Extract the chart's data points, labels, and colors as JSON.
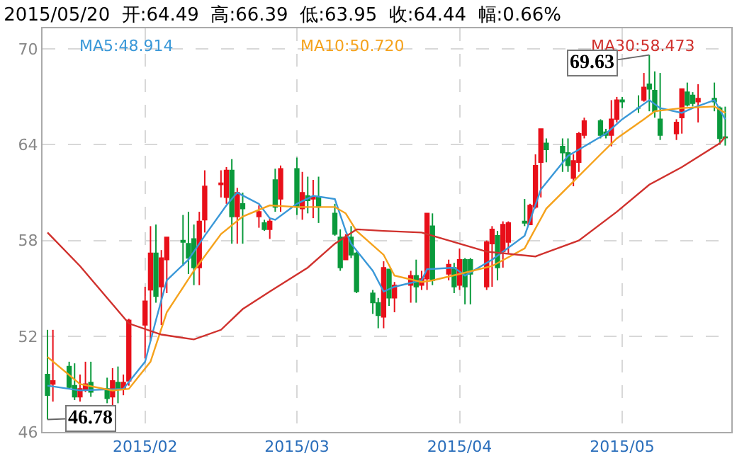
{
  "chart_data": {
    "type": "candlestick",
    "title": "2015/05/20  开:64.49  高:66.39  低:63.95  收:64.44  幅:0.66%",
    "x": [
      "2015-01-15",
      "2015-01-16",
      "2015-01-19",
      "2015-01-20",
      "2015-01-21",
      "2015-01-22",
      "2015-01-23",
      "2015-01-26",
      "2015-01-27",
      "2015-01-28",
      "2015-01-29",
      "2015-01-30",
      "2015-02-02",
      "2015-02-03",
      "2015-02-04",
      "2015-02-05",
      "2015-02-06",
      "2015-02-09",
      "2015-02-10",
      "2015-02-11",
      "2015-02-12",
      "2015-02-13",
      "2015-02-16",
      "2015-02-17",
      "2015-02-18",
      "2015-02-19",
      "2015-02-20",
      "2015-02-23",
      "2015-02-24",
      "2015-02-25",
      "2015-02-26",
      "2015-02-27",
      "2015-03-02",
      "2015-03-03",
      "2015-03-04",
      "2015-03-05",
      "2015-03-06",
      "2015-03-09",
      "2015-03-10",
      "2015-03-11",
      "2015-03-12",
      "2015-03-13",
      "2015-03-16",
      "2015-03-17",
      "2015-03-18",
      "2015-03-19",
      "2015-03-20",
      "2015-03-23",
      "2015-03-24",
      "2015-03-25",
      "2015-03-26",
      "2015-03-27",
      "2015-03-30",
      "2015-03-31",
      "2015-04-01",
      "2015-04-02",
      "2015-04-03",
      "2015-04-06",
      "2015-04-07",
      "2015-04-08",
      "2015-04-09",
      "2015-04-10",
      "2015-04-13",
      "2015-04-14",
      "2015-04-15",
      "2015-04-16",
      "2015-04-17",
      "2015-04-20",
      "2015-04-21",
      "2015-04-22",
      "2015-04-23",
      "2015-04-24",
      "2015-04-27",
      "2015-04-28",
      "2015-04-29",
      "2015-04-30",
      "2015-05-01",
      "2015-05-04",
      "2015-05-05",
      "2015-05-06",
      "2015-05-07",
      "2015-05-08",
      "2015-05-11",
      "2015-05-12",
      "2015-05-13",
      "2015-05-14",
      "2015-05-15",
      "2015-05-18",
      "2015-05-19",
      "2015-05-20"
    ],
    "ohlc": [
      [
        49.6,
        52.4,
        46.78,
        48.3
      ],
      [
        49.0,
        52.4,
        47.9,
        49.2
      ],
      [
        50.1,
        50.4,
        48.7,
        48.8
      ],
      [
        48.9,
        50.3,
        48.0,
        48.2
      ],
      [
        48.2,
        49.6,
        47.9,
        48.7
      ],
      [
        48.7,
        50.4,
        48.5,
        49.0
      ],
      [
        49.1,
        50.4,
        48.2,
        48.5
      ],
      [
        48.7,
        49.4,
        47.8,
        48.1
      ],
      [
        48.2,
        50.0,
        47.5,
        49.2
      ],
      [
        49.1,
        50.1,
        47.8,
        48.7
      ],
      [
        48.7,
        49.6,
        48.3,
        49.1
      ],
      [
        49.2,
        53.1,
        48.9,
        53.0
      ],
      [
        52.7,
        55.1,
        50.6,
        54.2
      ],
      [
        54.9,
        58.9,
        51.7,
        57.2
      ],
      [
        57.2,
        59.0,
        54.1,
        54.5
      ],
      [
        55.1,
        57.4,
        52.7,
        56.9
      ],
      [
        56.8,
        58.2,
        54.7,
        58.2
      ],
      [
        58.0,
        59.6,
        56.4,
        57.9
      ],
      [
        57.8,
        59.8,
        55.9,
        56.9
      ],
      [
        58.1,
        59.0,
        55.2,
        56.3
      ],
      [
        56.3,
        59.8,
        55.2,
        59.2
      ],
      [
        59.3,
        62.4,
        58.5,
        61.4
      ],
      [
        61.5,
        62.4,
        60.7,
        61.6
      ],
      [
        60.7,
        62.6,
        60.3,
        62.4
      ],
      [
        62.4,
        63.1,
        57.8,
        59.5
      ],
      [
        59.5,
        61.3,
        57.8,
        61.0
      ],
      [
        60.3,
        61.0,
        57.8,
        60.0
      ],
      [
        59.5,
        60.2,
        58.8,
        59.8
      ],
      [
        59.1,
        59.3,
        58.6,
        58.7
      ],
      [
        58.7,
        59.4,
        58.1,
        59.2
      ],
      [
        61.8,
        62.5,
        59.8,
        60.1
      ],
      [
        60.6,
        62.7,
        59.8,
        62.5
      ],
      [
        62.5,
        63.2,
        59.6,
        60.1
      ],
      [
        60.0,
        62.3,
        59.3,
        61.0
      ],
      [
        60.8,
        62.0,
        59.7,
        60.5
      ],
      [
        60.6,
        61.8,
        59.4,
        60.7
      ],
      [
        60.7,
        62.0,
        59.1,
        60.1
      ],
      [
        59.7,
        60.3,
        58.3,
        58.4
      ],
      [
        58.2,
        58.7,
        56.1,
        56.3
      ],
      [
        56.8,
        58.4,
        56.8,
        58.2
      ],
      [
        58.2,
        58.9,
        56.9,
        57.1
      ],
      [
        57.2,
        57.3,
        54.7,
        54.8
      ],
      [
        54.7,
        54.9,
        53.4,
        54.1
      ],
      [
        54.1,
        54.4,
        52.5,
        53.3
      ],
      [
        53.2,
        56.7,
        52.5,
        56.3
      ],
      [
        56.2,
        56.2,
        53.9,
        54.4
      ],
      [
        54.4,
        55.4,
        53.5,
        55.2
      ],
      [
        55.2,
        56.1,
        54.1,
        55.8
      ],
      [
        55.8,
        56.8,
        54.1,
        55.1
      ],
      [
        55.2,
        56.1,
        54.9,
        55.6
      ],
      [
        55.6,
        59.7,
        54.9,
        59.7
      ],
      [
        58.9,
        59.7,
        55.2,
        55.5
      ],
      [
        55.9,
        56.8,
        55.5,
        56.5
      ],
      [
        56.3,
        56.6,
        54.7,
        55.1
      ],
      [
        55.2,
        57.5,
        54.9,
        56.8
      ],
      [
        56.8,
        56.9,
        54.0,
        55.1
      ],
      [
        56.8,
        56.9,
        54.0,
        55.9
      ],
      [
        55.1,
        58.0,
        54.9,
        57.9
      ],
      [
        57.8,
        58.9,
        55.1,
        58.7
      ],
      [
        58.3,
        58.6,
        55.5,
        56.3
      ],
      [
        57.3,
        59.2,
        56.3,
        59.0
      ],
      [
        57.9,
        59.2,
        57.2,
        59.1
      ],
      [
        59.2,
        60.6,
        58.9,
        59.1
      ],
      [
        59.0,
        60.3,
        59.0,
        60.2
      ],
      [
        60.1,
        63.4,
        60.0,
        62.7
      ],
      [
        62.9,
        65.0,
        60.7,
        65.0
      ],
      [
        64.1,
        64.4,
        62.9,
        63.7
      ],
      [
        63.9,
        64.4,
        62.3,
        63.5
      ],
      [
        63.5,
        64.4,
        62.3,
        62.7
      ],
      [
        61.9,
        63.4,
        61.4,
        63.0
      ],
      [
        62.9,
        64.8,
        62.3,
        64.7
      ],
      [
        64.6,
        65.7,
        64.4,
        65.5
      ],
      [
        65.5,
        65.6,
        64.4,
        64.6
      ],
      [
        64.8,
        65.0,
        64.4,
        64.6
      ],
      [
        64.6,
        66.8,
        63.9,
        65.6
      ],
      [
        65.6,
        67.0,
        65.4,
        66.8
      ],
      [
        66.8,
        67.0,
        66.3,
        66.7
      ],
      [
        66.3,
        67.1,
        66.0,
        66.3
      ],
      [
        66.8,
        68.5,
        66.7,
        67.6
      ],
      [
        67.8,
        69.63,
        66.1,
        67.5
      ],
      [
        67.4,
        68.6,
        65.7,
        66.1
      ],
      [
        65.6,
        68.5,
        64.3,
        64.6
      ],
      [
        64.7,
        65.6,
        64.3,
        65.4
      ],
      [
        65.7,
        67.5,
        64.7,
        67.5
      ],
      [
        67.3,
        67.9,
        66.4,
        66.5
      ],
      [
        67.1,
        67.3,
        66.4,
        66.6
      ],
      [
        66.7,
        67.8,
        65.4,
        66.9
      ],
      [
        66.9,
        67.9,
        66.1,
        66.7
      ],
      [
        66.3,
        66.4,
        64.0,
        64.4
      ],
      [
        64.49,
        66.39,
        63.95,
        64.44
      ]
    ],
    "colors": [
      "#0a9a3c",
      "#e8101a",
      "#0a9a3c",
      "#0a9a3c",
      "#e8101a",
      "#e8101a",
      "#0a9a3c",
      "#0a9a3c",
      "#e8101a",
      "#0a9a3c",
      "#e8101a",
      "#e8101a",
      "#e8101a",
      "#e8101a",
      "#0a9a3c",
      "#e8101a",
      "#e8101a",
      "#0a9a3c",
      "#0a9a3c",
      "#0a9a3c",
      "#e8101a",
      "#e8101a",
      "#e8101a",
      "#e8101a",
      "#0a9a3c",
      "#e8101a",
      "#0a9a3c",
      "#e8101a",
      "#0a9a3c",
      "#e8101a",
      "#0a9a3c",
      "#e8101a",
      "#0a9a3c",
      "#e8101a",
      "#0a9a3c",
      "#e8101a",
      "#0a9a3c",
      "#0a9a3c",
      "#0a9a3c",
      "#e8101a",
      "#0a9a3c",
      "#0a9a3c",
      "#0a9a3c",
      "#0a9a3c",
      "#e8101a",
      "#0a9a3c",
      "#e8101a",
      "#e8101a",
      "#0a9a3c",
      "#e8101a",
      "#e8101a",
      "#0a9a3c",
      "#e8101a",
      "#0a9a3c",
      "#e8101a",
      "#0a9a3c",
      "#0a9a3c",
      "#e8101a",
      "#e8101a",
      "#0a9a3c",
      "#e8101a",
      "#e8101a",
      "#0a9a3c",
      "#e8101a",
      "#e8101a",
      "#e8101a",
      "#0a9a3c",
      "#0a9a3c",
      "#0a9a3c",
      "#e8101a",
      "#e8101a",
      "#e8101a",
      "#0a9a3c",
      "#0a9a3c",
      "#e8101a",
      "#e8101a",
      "#0a9a3c",
      "#0a9a3c",
      "#e8101a",
      "#0a9a3c",
      "#0a9a3c",
      "#0a9a3c",
      "#e8101a",
      "#e8101a",
      "#0a9a3c",
      "#0a9a3c",
      "#e8101a",
      "#0a9a3c",
      "#0a9a3c",
      "#0a9a3c"
    ],
    "series": [
      {
        "type": "line",
        "name": "MA5:48.914",
        "color": "#3a98d8",
        "x": [
          "2015-01-15",
          "2015-01-21",
          "2015-01-29",
          "2015-02-02",
          "2015-02-04",
          "2015-02-06",
          "2015-02-10",
          "2015-02-13",
          "2015-02-17",
          "2015-02-19",
          "2015-02-23",
          "2015-02-25",
          "2015-02-26",
          "2015-03-02",
          "2015-03-05",
          "2015-03-09",
          "2015-03-11",
          "2015-03-12",
          "2015-03-16",
          "2015-03-18",
          "2015-03-20",
          "2015-03-25",
          "2015-03-26",
          "2015-03-31",
          "2015-04-02",
          "2015-04-07",
          "2015-04-13",
          "2015-04-16",
          "2015-04-21",
          "2015-04-23",
          "2015-04-28",
          "2015-05-01",
          "2015-05-06",
          "2015-05-08",
          "2015-05-12",
          "2015-05-14",
          "2015-05-18",
          "2015-05-20"
        ],
        "values": [
          48.9,
          48.6,
          48.7,
          50.4,
          53.0,
          55.5,
          56.8,
          58.3,
          60.2,
          61.0,
          60.3,
          59.4,
          59.3,
          60.3,
          60.8,
          60.6,
          58.6,
          57.8,
          56.1,
          54.8,
          55.1,
          55.5,
          56.2,
          56.3,
          55.8,
          56.8,
          58.3,
          61.2,
          63.3,
          63.7,
          64.7,
          65.6,
          66.8,
          66.3,
          66.0,
          66.3,
          66.8,
          65.6
        ]
      },
      {
        "type": "line",
        "name": "MA10:50.720",
        "color": "#f5a21c",
        "x": [
          "2015-01-15",
          "2015-01-21",
          "2015-01-27",
          "2015-01-30",
          "2015-02-03",
          "2015-02-06",
          "2015-02-11",
          "2015-02-16",
          "2015-02-20",
          "2015-02-25",
          "2015-03-02",
          "2015-03-09",
          "2015-03-11",
          "2015-03-13",
          "2015-03-18",
          "2015-03-20",
          "2015-03-25",
          "2015-03-27",
          "2015-04-01",
          "2015-04-07",
          "2015-04-13",
          "2015-04-17",
          "2015-04-22",
          "2015-04-27",
          "2015-04-30",
          "2015-05-05",
          "2015-05-07",
          "2015-05-12",
          "2015-05-18",
          "2015-05-20"
        ],
        "values": [
          50.7,
          49.0,
          48.6,
          48.7,
          50.4,
          53.5,
          56.1,
          58.4,
          59.5,
          60.2,
          60.1,
          60.1,
          59.7,
          58.6,
          57.1,
          55.8,
          55.4,
          55.5,
          55.9,
          56.4,
          57.5,
          60.0,
          61.7,
          63.4,
          64.4,
          65.6,
          66.1,
          66.3,
          66.4,
          66.0
        ]
      },
      {
        "type": "line",
        "name": "MA30:58.473",
        "color": "#d0312d",
        "x": [
          "2015-01-15",
          "2015-01-21",
          "2015-01-26",
          "2015-01-30",
          "2015-02-05",
          "2015-02-11",
          "2015-02-16",
          "2015-02-20",
          "2015-02-25",
          "2015-03-04",
          "2015-03-09",
          "2015-03-13",
          "2015-03-18",
          "2015-03-25",
          "2015-04-01",
          "2015-04-06",
          "2015-04-15",
          "2015-04-23",
          "2015-04-30",
          "2015-05-06",
          "2015-05-12",
          "2015-05-19",
          "2015-05-20"
        ],
        "values": [
          58.5,
          56.4,
          54.4,
          52.8,
          52.1,
          51.8,
          52.4,
          53.7,
          54.8,
          56.3,
          57.8,
          58.7,
          58.6,
          58.5,
          57.8,
          57.3,
          57.0,
          58.0,
          59.8,
          61.5,
          62.6,
          64.1,
          64.5
        ]
      }
    ],
    "annotations": [
      {
        "text": "69.63",
        "x": "2015-05-06",
        "y": 69.63
      },
      {
        "text": "46.78",
        "x": "2015-01-15",
        "y": 46.78
      }
    ],
    "xlim": [
      "2015-01-14T02:00",
      "2015-05-21T03:00"
    ],
    "xticks": [
      {
        "value": "2015-02-02",
        "label": "2015/02"
      },
      {
        "value": "2015-03-02",
        "label": "2015/03"
      },
      {
        "value": "2015-04-01",
        "label": "2015/04"
      },
      {
        "value": "2015-05-01",
        "label": "2015/05"
      }
    ],
    "ylim": [
      46,
      71.3
    ],
    "yticks": [
      46,
      52,
      58,
      64,
      70
    ],
    "grid": true
  }
}
